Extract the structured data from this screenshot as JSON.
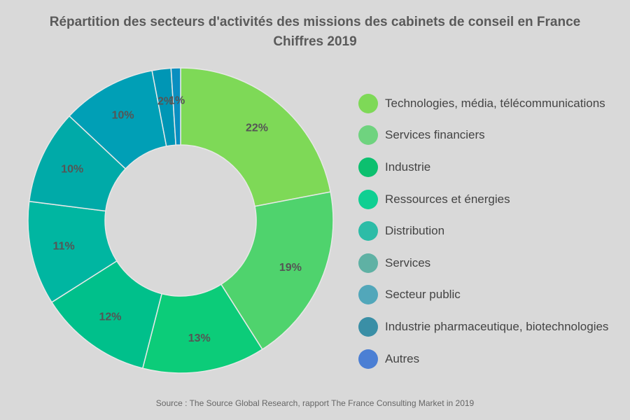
{
  "chart_data": {
    "type": "pie",
    "title": "Répartition des secteurs d'activités des missions des cabinets de conseil en France",
    "subtitle": "Chiffres 2019",
    "legend_placement": "right",
    "slices": [
      {
        "name": "Technologies, média, télécommunications",
        "value": 22,
        "label": "22%",
        "color": "#7ed957"
      },
      {
        "name": "Services financiers",
        "value": 19,
        "label": "19%",
        "color": "#4fd36d"
      },
      {
        "name": "Industrie",
        "value": 13,
        "label": "13%",
        "color": "#0ccc79"
      },
      {
        "name": "Ressources et énergies",
        "value": 12,
        "label": "12%",
        "color": "#00c08b"
      },
      {
        "name": "Distribution",
        "value": 11,
        "label": "11%",
        "color": "#00b6a1"
      },
      {
        "name": "Services",
        "value": 10,
        "label": "10%",
        "color": "#00aaa8"
      },
      {
        "name": "Secteur public",
        "value": 10,
        "label": "10%",
        "color": "#009fb6"
      },
      {
        "name": "Industrie pharmaceutique, biotechnologies",
        "value": 2,
        "label": "2%",
        "color": "#0096b5"
      },
      {
        "name": "Autres",
        "value": 1,
        "label": "1%",
        "color": "#0a8fc0"
      }
    ]
  },
  "legend": {
    "items": [
      {
        "label": "Technologies, média, télécommunications",
        "color": "#7ed957"
      },
      {
        "label": "Services financiers",
        "color": "#6fd37f"
      },
      {
        "label": "Industrie",
        "color": "#0cc06f"
      },
      {
        "label": "Ressources et énergies",
        "color": "#0fcf92"
      },
      {
        "label": "Distribution",
        "color": "#2dbca7"
      },
      {
        "label": "Services",
        "color": "#5fb1a4"
      },
      {
        "label": "Secteur public",
        "color": "#52a7ba"
      },
      {
        "label": "Industrie pharmaceutique, biotechnologies",
        "color": "#3a8fa6"
      },
      {
        "label": "Autres",
        "color": "#4b7fd4"
      }
    ]
  },
  "footer": {
    "source": "Source : The Source Global Research, rapport The France Consulting Market in 2019"
  }
}
